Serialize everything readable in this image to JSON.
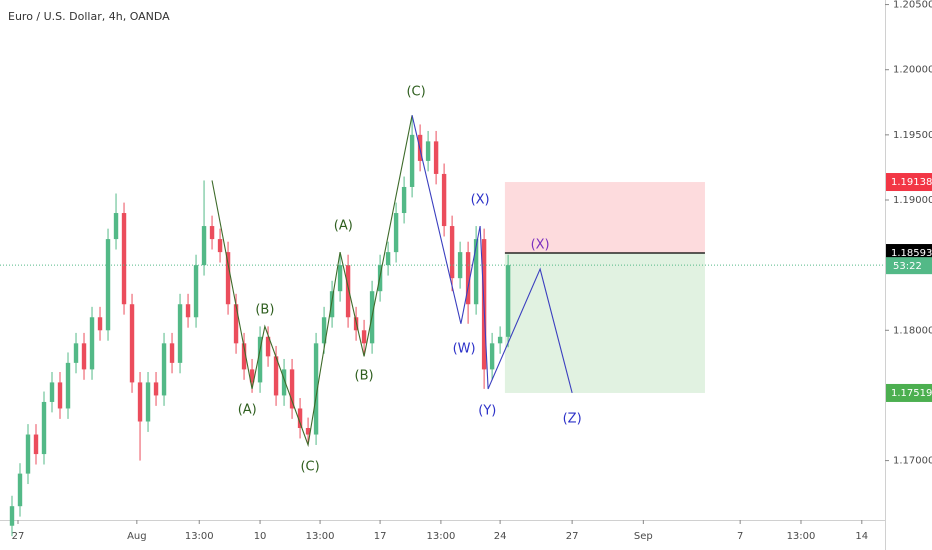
{
  "chart_data": {
    "type": "candlestick",
    "title": "Euro / U.S. Dollar, 4h, OANDA",
    "up_color": "#53b987",
    "down_color": "#eb4d5c",
    "xlim": [
      -1.5,
      109.1
    ],
    "ylim": [
      1.16544,
      1.20535
    ],
    "grid": false,
    "yticks": [
      {
        "value": 1.205,
        "label": "1.20500"
      },
      {
        "value": 1.2,
        "label": "1.20000"
      },
      {
        "value": 1.195,
        "label": "1.19500"
      },
      {
        "value": 1.19,
        "label": "1.19000"
      },
      {
        "value": 1.18,
        "label": "1.18000"
      },
      {
        "value": 1.17,
        "label": "1.17000"
      }
    ],
    "xticks": [
      {
        "value": 0.75,
        "label": "27"
      },
      {
        "value": 15.6,
        "label": "Aug"
      },
      {
        "value": 23.4,
        "label": "13:00"
      },
      {
        "value": 31,
        "label": "10"
      },
      {
        "value": 38.5,
        "label": "13:00"
      },
      {
        "value": 46,
        "label": "17"
      },
      {
        "value": 53.6,
        "label": "13:00"
      },
      {
        "value": 61,
        "label": "24"
      },
      {
        "value": 70,
        "label": "27"
      },
      {
        "value": 78.9,
        "label": "Sep"
      },
      {
        "value": 91,
        "label": "7"
      },
      {
        "value": 98.6,
        "label": "13:00"
      },
      {
        "value": 106.2,
        "label": "14"
      }
    ],
    "open": [
      1.165,
      1.1665,
      1.169,
      1.172,
      1.1705,
      1.1745,
      1.176,
      1.174,
      1.1775,
      1.179,
      1.177,
      1.181,
      1.18,
      1.187,
      1.189,
      1.182,
      1.176,
      1.173,
      1.176,
      1.175,
      1.179,
      1.1775,
      1.182,
      1.181,
      1.185,
      1.188,
      1.187,
      1.186,
      1.182,
      1.179,
      1.177,
      1.176,
      1.1795,
      1.178,
      1.175,
      1.177,
      1.174,
      1.1725,
      1.172,
      1.179,
      1.181,
      1.183,
      1.185,
      1.181,
      1.18,
      1.179,
      1.183,
      1.185,
      1.186,
      1.189,
      1.191,
      1.195,
      1.193,
      1.1945,
      1.192,
      1.188,
      1.184,
      1.186,
      1.182,
      1.187,
      1.177,
      1.179,
      1.1795
    ],
    "high": [
      1.1673,
      1.1698,
      1.1728,
      1.1728,
      1.1753,
      1.1768,
      1.1768,
      1.1783,
      1.1798,
      1.1798,
      1.1818,
      1.1818,
      1.1878,
      1.1905,
      1.1898,
      1.1828,
      1.1768,
      1.1768,
      1.1768,
      1.1798,
      1.1798,
      1.1828,
      1.1828,
      1.1858,
      1.1915,
      1.1888,
      1.1878,
      1.1868,
      1.1828,
      1.1798,
      1.1778,
      1.1803,
      1.1803,
      1.1788,
      1.1778,
      1.1778,
      1.1748,
      1.1733,
      1.1798,
      1.1818,
      1.1838,
      1.186,
      1.1858,
      1.1818,
      1.1808,
      1.1838,
      1.1858,
      1.1868,
      1.1898,
      1.1918,
      1.1965,
      1.1958,
      1.1953,
      1.1953,
      1.1928,
      1.1888,
      1.1868,
      1.1868,
      1.188,
      1.1878,
      1.1798,
      1.1803,
      1.1858
    ],
    "low": [
      1.1642,
      1.1657,
      1.1682,
      1.1697,
      1.1697,
      1.1737,
      1.1732,
      1.1732,
      1.1767,
      1.1762,
      1.1762,
      1.1792,
      1.1792,
      1.1862,
      1.1812,
      1.1752,
      1.17,
      1.1722,
      1.1742,
      1.1742,
      1.1767,
      1.1767,
      1.1802,
      1.1802,
      1.1842,
      1.1862,
      1.1852,
      1.1812,
      1.1782,
      1.1762,
      1.1752,
      1.1752,
      1.1772,
      1.1742,
      1.1742,
      1.1732,
      1.1717,
      1.1712,
      1.1712,
      1.1782,
      1.1802,
      1.1822,
      1.1802,
      1.1792,
      1.178,
      1.1782,
      1.1822,
      1.1842,
      1.1852,
      1.1882,
      1.1902,
      1.1922,
      1.1922,
      1.1912,
      1.1872,
      1.183,
      1.1832,
      1.1805,
      1.1812,
      1.1755,
      1.1762,
      1.1782,
      1.1787
    ],
    "close": [
      1.1665,
      1.169,
      1.172,
      1.1705,
      1.1745,
      1.176,
      1.174,
      1.1775,
      1.179,
      1.177,
      1.181,
      1.18,
      1.187,
      1.189,
      1.182,
      1.176,
      1.173,
      1.176,
      1.175,
      1.179,
      1.1775,
      1.182,
      1.181,
      1.185,
      1.188,
      1.187,
      1.186,
      1.182,
      1.179,
      1.177,
      1.176,
      1.1795,
      1.178,
      1.175,
      1.177,
      1.174,
      1.1725,
      1.172,
      1.179,
      1.181,
      1.183,
      1.185,
      1.181,
      1.18,
      1.179,
      1.183,
      1.185,
      1.186,
      1.189,
      1.191,
      1.195,
      1.193,
      1.1945,
      1.192,
      1.188,
      1.184,
      1.186,
      1.182,
      1.187,
      1.177,
      1.179,
      1.1795,
      1.185
    ],
    "position": {
      "x0": 61.6,
      "x1": 86.6,
      "stop": 1.19138,
      "entry": 1.18593,
      "target": 1.17519
    },
    "countdown": "53:22",
    "drawings": [
      {
        "color": "#3d6b2a",
        "points": [
          [
            25,
            1.1915
          ],
          [
            30,
            1.1755
          ],
          [
            31.6,
            1.1803
          ],
          [
            37,
            1.1712
          ],
          [
            41,
            1.186
          ],
          [
            44,
            1.178
          ],
          [
            50,
            1.1965
          ]
        ]
      },
      {
        "color": "#3b3fbf",
        "points": [
          [
            50,
            1.1965
          ],
          [
            56.1,
            1.1805
          ],
          [
            58.5,
            1.188
          ],
          [
            59.5,
            1.1755
          ],
          [
            66,
            1.1847
          ],
          [
            70,
            1.1752
          ]
        ]
      }
    ],
    "annotations": [
      {
        "text": "(C)",
        "x": 50.5,
        "y": 1.19829,
        "color": "#2e5e1e"
      },
      {
        "text": "(A)",
        "x": 41.4,
        "y": 1.188,
        "color": "#2e5e1e"
      },
      {
        "text": "(B)",
        "x": 31.6,
        "y": 1.18156,
        "color": "#2e5e1e"
      },
      {
        "text": "(A)",
        "x": 29.4,
        "y": 1.17388,
        "color": "#2e5e1e"
      },
      {
        "text": "(B)",
        "x": 44,
        "y": 1.17649,
        "color": "#2e5e1e"
      },
      {
        "text": "(C)",
        "x": 37.25,
        "y": 1.16951,
        "color": "#2e5e1e"
      },
      {
        "text": "(X)",
        "x": 58.5,
        "y": 1.19,
        "color": "#2b30c8"
      },
      {
        "text": "(W)",
        "x": 56.5,
        "y": 1.17856,
        "color": "#2b30c8"
      },
      {
        "text": "(Y)",
        "x": 59.4,
        "y": 1.17381,
        "color": "#2b30c8"
      },
      {
        "text": "(X)",
        "x": 66,
        "y": 1.18655,
        "color": "#7b2fbf"
      },
      {
        "text": "(Z)",
        "x": 70,
        "y": 1.17319,
        "color": "#2b30c8"
      }
    ]
  }
}
